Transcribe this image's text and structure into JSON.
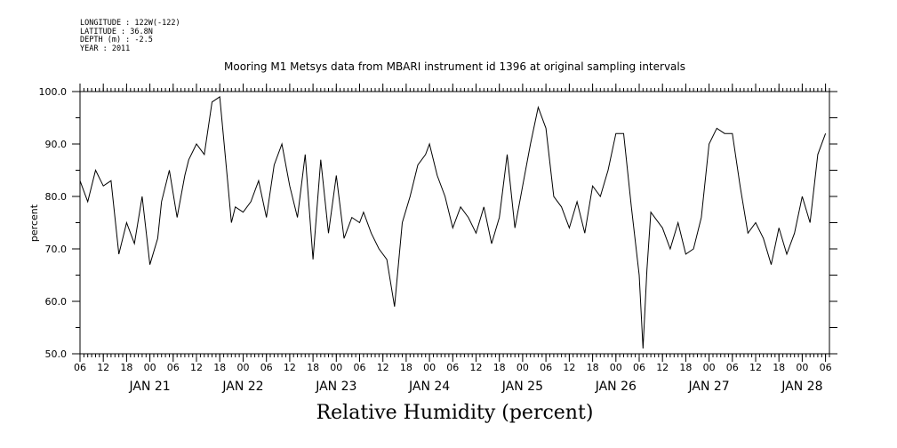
{
  "header": {
    "lines": [
      "LONGITUDE : 122W(-122)",
      "LATITUDE : 36.8N",
      "DEPTH (m) : -2.5",
      "YEAR : 2011"
    ]
  },
  "chart_data": {
    "type": "line",
    "title": "Mooring M1 Metsys data from MBARI instrument id 1396 at original sampling intervals",
    "xlabel": "Relative Humidity (percent)",
    "ylabel": "percent",
    "ylim": [
      50,
      100
    ],
    "xlim": [
      "2011-01-20T06:00",
      "2011-01-28T07:00"
    ],
    "yticks": [
      50,
      60,
      70,
      80,
      90,
      100
    ],
    "ytick_labels": [
      "50.0",
      "60.0",
      "70.0",
      "80.0",
      "90.0",
      "100.0"
    ],
    "xtick_hour_labels": [
      "06",
      "12",
      "18",
      "00",
      "06",
      "12",
      "18",
      "00",
      "06",
      "12",
      "18",
      "00",
      "06",
      "12",
      "18",
      "00",
      "06",
      "12",
      "18",
      "00",
      "06",
      "12",
      "18",
      "00",
      "06",
      "12",
      "18",
      "00",
      "06",
      "12",
      "18",
      "00",
      "06"
    ],
    "date_labels": [
      "JAN 21",
      "JAN 22",
      "JAN 23",
      "JAN 24",
      "JAN 25",
      "JAN 26",
      "JAN 27",
      "JAN 28"
    ],
    "grid": false,
    "series": [
      {
        "x": [
          "2011-01-20T06:00",
          "2011-01-20T08:00",
          "2011-01-20T10:00",
          "2011-01-20T12:00",
          "2011-01-20T14:00",
          "2011-01-20T16:00",
          "2011-01-20T18:00",
          "2011-01-20T20:00",
          "2011-01-20T22:00",
          "2011-01-21T00:00",
          "2011-01-21T02:00",
          "2011-01-21T03:00",
          "2011-01-21T05:00",
          "2011-01-21T07:00",
          "2011-01-21T09:00",
          "2011-01-21T10:00",
          "2011-01-21T12:00",
          "2011-01-21T14:00",
          "2011-01-21T16:00",
          "2011-01-21T18:00",
          "2011-01-21T20:00",
          "2011-01-21T21:00",
          "2011-01-21T22:00",
          "2011-01-22T00:00",
          "2011-01-22T02:00",
          "2011-01-22T04:00",
          "2011-01-22T06:00",
          "2011-01-22T08:00",
          "2011-01-22T10:00",
          "2011-01-22T12:00",
          "2011-01-22T14:00",
          "2011-01-22T16:00",
          "2011-01-22T18:00",
          "2011-01-22T20:00",
          "2011-01-22T22:00",
          "2011-01-23T00:00",
          "2011-01-23T02:00",
          "2011-01-23T04:00",
          "2011-01-23T06:00",
          "2011-01-23T07:00",
          "2011-01-23T09:00",
          "2011-01-23T11:00",
          "2011-01-23T13:00",
          "2011-01-23T15:00",
          "2011-01-23T17:00",
          "2011-01-23T19:00",
          "2011-01-23T21:00",
          "2011-01-23T23:00",
          "2011-01-24T00:00",
          "2011-01-24T02:00",
          "2011-01-24T04:00",
          "2011-01-24T06:00",
          "2011-01-24T08:00",
          "2011-01-24T10:00",
          "2011-01-24T12:00",
          "2011-01-24T14:00",
          "2011-01-24T16:00",
          "2011-01-24T18:00",
          "2011-01-24T20:00",
          "2011-01-24T22:00",
          "2011-01-25T00:00",
          "2011-01-25T02:00",
          "2011-01-25T04:00",
          "2011-01-25T06:00",
          "2011-01-25T08:00",
          "2011-01-25T10:00",
          "2011-01-25T12:00",
          "2011-01-25T14:00",
          "2011-01-25T16:00",
          "2011-01-25T18:00",
          "2011-01-25T20:00",
          "2011-01-25T22:00",
          "2011-01-26T00:00",
          "2011-01-26T02:00",
          "2011-01-26T04:00",
          "2011-01-26T06:00",
          "2011-01-26T07:00",
          "2011-01-26T08:00",
          "2011-01-26T09:00",
          "2011-01-26T10:00",
          "2011-01-26T12:00",
          "2011-01-26T14:00",
          "2011-01-26T16:00",
          "2011-01-26T18:00",
          "2011-01-26T20:00",
          "2011-01-26T22:00",
          "2011-01-27T00:00",
          "2011-01-27T02:00",
          "2011-01-27T04:00",
          "2011-01-27T06:00",
          "2011-01-27T08:00",
          "2011-01-27T10:00",
          "2011-01-27T12:00",
          "2011-01-27T14:00",
          "2011-01-27T16:00",
          "2011-01-27T18:00",
          "2011-01-27T20:00",
          "2011-01-27T22:00",
          "2011-01-28T00:00",
          "2011-01-28T02:00",
          "2011-01-28T04:00",
          "2011-01-28T06:00"
        ],
        "y": [
          83,
          79,
          85,
          82,
          83,
          69,
          75,
          71,
          80,
          67,
          72,
          79,
          85,
          76,
          84,
          87,
          90,
          88,
          98,
          99,
          83,
          75,
          78,
          77,
          79,
          83,
          76,
          86,
          90,
          82,
          76,
          88,
          68,
          87,
          73,
          84,
          72,
          76,
          75,
          77,
          73,
          70,
          68,
          59,
          75,
          80,
          86,
          88,
          90,
          84,
          80,
          74,
          78,
          76,
          73,
          78,
          71,
          76,
          88,
          74,
          82,
          90,
          97,
          93,
          80,
          78,
          74,
          79,
          73,
          82,
          80,
          85,
          92,
          92,
          78,
          65,
          51,
          66,
          77,
          76,
          74,
          70,
          75,
          69,
          70,
          76,
          90,
          93,
          92,
          92,
          82,
          73,
          75,
          72,
          67,
          74,
          69,
          73,
          80,
          75,
          88,
          92
        ]
      }
    ]
  }
}
